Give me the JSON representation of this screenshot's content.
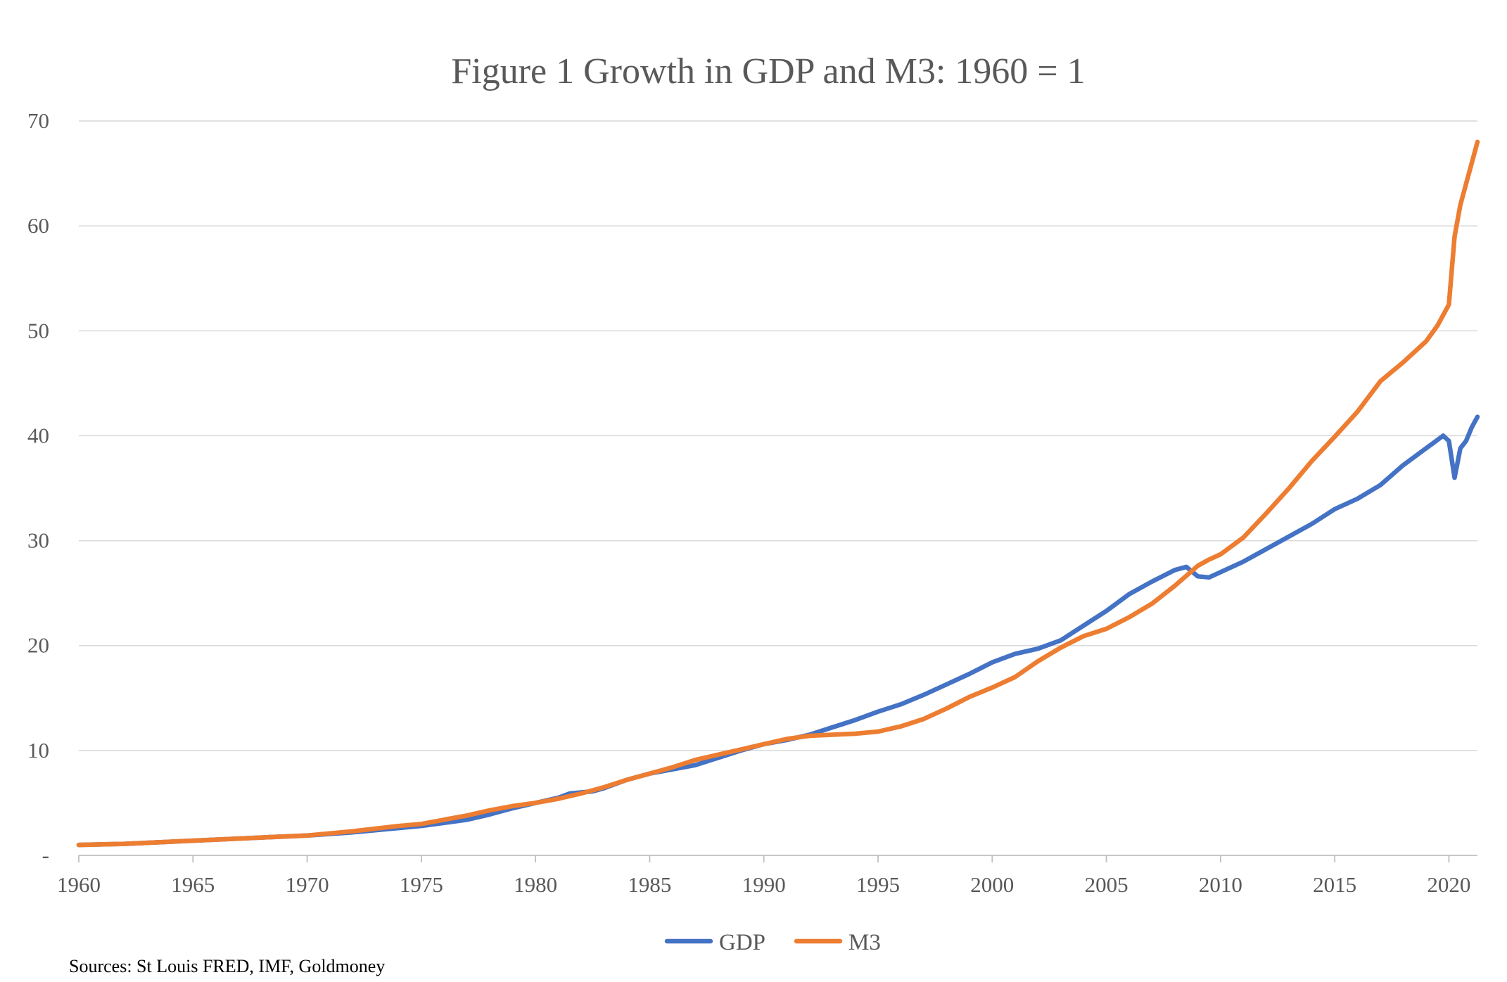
{
  "chart_data": {
    "type": "line",
    "title": "Figure 1 Growth in GDP and M3: 1960 = 1",
    "xlabel": "",
    "ylabel": "",
    "xlim": [
      1960,
      2021.25
    ],
    "ylim": [
      0,
      70
    ],
    "y_ticks": [
      "-",
      "10",
      "20",
      "30",
      "40",
      "50",
      "60",
      "70"
    ],
    "y_tick_values": [
      0,
      10,
      20,
      30,
      40,
      50,
      60,
      70
    ],
    "x_ticks": [
      "1960",
      "1965",
      "1970",
      "1975",
      "1980",
      "1985",
      "1990",
      "1995",
      "2000",
      "2005",
      "2010",
      "2015",
      "2020"
    ],
    "x_tick_values": [
      1960,
      1965,
      1970,
      1975,
      1980,
      1985,
      1990,
      1995,
      2000,
      2005,
      2010,
      2015,
      2020
    ],
    "grid": true,
    "legend_position": "bottom",
    "series": [
      {
        "name": "GDP",
        "color": "#4472c4",
        "points": [
          [
            1960,
            1.0
          ],
          [
            1962,
            1.1
          ],
          [
            1964,
            1.3
          ],
          [
            1966,
            1.5
          ],
          [
            1968,
            1.7
          ],
          [
            1970,
            1.9
          ],
          [
            1972,
            2.2
          ],
          [
            1974,
            2.6
          ],
          [
            1975,
            2.8
          ],
          [
            1976,
            3.1
          ],
          [
            1977,
            3.4
          ],
          [
            1978,
            3.9
          ],
          [
            1979,
            4.5
          ],
          [
            1980,
            5.0
          ],
          [
            1981,
            5.5
          ],
          [
            1981.5,
            5.9
          ],
          [
            1982,
            6.0
          ],
          [
            1982.5,
            6.1
          ],
          [
            1983,
            6.4
          ],
          [
            1984,
            7.2
          ],
          [
            1985,
            7.8
          ],
          [
            1986,
            8.2
          ],
          [
            1987,
            8.6
          ],
          [
            1988,
            9.3
          ],
          [
            1989,
            10.0
          ],
          [
            1990,
            10.6
          ],
          [
            1991,
            11.0
          ],
          [
            1992,
            11.5
          ],
          [
            1993,
            12.2
          ],
          [
            1994,
            12.9
          ],
          [
            1995,
            13.7
          ],
          [
            1996,
            14.4
          ],
          [
            1997,
            15.3
          ],
          [
            1998,
            16.3
          ],
          [
            1999,
            17.3
          ],
          [
            2000,
            18.4
          ],
          [
            2001,
            19.2
          ],
          [
            2002,
            19.7
          ],
          [
            2003,
            20.5
          ],
          [
            2004,
            21.9
          ],
          [
            2005,
            23.3
          ],
          [
            2006,
            24.9
          ],
          [
            2007,
            26.1
          ],
          [
            2008,
            27.2
          ],
          [
            2008.5,
            27.5
          ],
          [
            2009,
            26.6
          ],
          [
            2009.5,
            26.5
          ],
          [
            2010,
            27.0
          ],
          [
            2011,
            28.0
          ],
          [
            2012,
            29.2
          ],
          [
            2013,
            30.4
          ],
          [
            2014,
            31.6
          ],
          [
            2015,
            33.0
          ],
          [
            2016,
            34.0
          ],
          [
            2017,
            35.3
          ],
          [
            2018,
            37.2
          ],
          [
            2019,
            38.8
          ],
          [
            2019.75,
            40.0
          ],
          [
            2020,
            39.5
          ],
          [
            2020.25,
            36.0
          ],
          [
            2020.5,
            38.8
          ],
          [
            2020.75,
            39.5
          ],
          [
            2021,
            40.8
          ],
          [
            2021.25,
            41.8
          ]
        ]
      },
      {
        "name": "M3",
        "color": "#ed7d31",
        "points": [
          [
            1960,
            1.0
          ],
          [
            1962,
            1.1
          ],
          [
            1964,
            1.3
          ],
          [
            1966,
            1.5
          ],
          [
            1968,
            1.7
          ],
          [
            1970,
            1.9
          ],
          [
            1972,
            2.3
          ],
          [
            1974,
            2.8
          ],
          [
            1975,
            3.0
          ],
          [
            1976,
            3.4
          ],
          [
            1977,
            3.8
          ],
          [
            1978,
            4.3
          ],
          [
            1979,
            4.7
          ],
          [
            1980,
            5.0
          ],
          [
            1981,
            5.4
          ],
          [
            1982,
            5.9
          ],
          [
            1983,
            6.5
          ],
          [
            1984,
            7.2
          ],
          [
            1985,
            7.8
          ],
          [
            1986,
            8.4
          ],
          [
            1987,
            9.1
          ],
          [
            1988,
            9.6
          ],
          [
            1989,
            10.1
          ],
          [
            1990,
            10.6
          ],
          [
            1991,
            11.1
          ],
          [
            1992,
            11.4
          ],
          [
            1993,
            11.5
          ],
          [
            1994,
            11.6
          ],
          [
            1995,
            11.8
          ],
          [
            1996,
            12.3
          ],
          [
            1997,
            13.0
          ],
          [
            1998,
            14.0
          ],
          [
            1999,
            15.1
          ],
          [
            2000,
            16.0
          ],
          [
            2001,
            17.0
          ],
          [
            2002,
            18.5
          ],
          [
            2003,
            19.8
          ],
          [
            2004,
            20.9
          ],
          [
            2005,
            21.6
          ],
          [
            2006,
            22.7
          ],
          [
            2007,
            24.0
          ],
          [
            2008,
            25.7
          ],
          [
            2009,
            27.6
          ],
          [
            2009.5,
            28.2
          ],
          [
            2010,
            28.7
          ],
          [
            2011,
            30.3
          ],
          [
            2012,
            32.6
          ],
          [
            2013,
            35.0
          ],
          [
            2014,
            37.6
          ],
          [
            2015,
            39.9
          ],
          [
            2016,
            42.3
          ],
          [
            2017,
            45.2
          ],
          [
            2018,
            47.0
          ],
          [
            2019,
            49.0
          ],
          [
            2019.5,
            50.5
          ],
          [
            2020,
            52.5
          ],
          [
            2020.25,
            59.0
          ],
          [
            2020.5,
            62.0
          ],
          [
            2021,
            66.0
          ],
          [
            2021.25,
            68.0
          ]
        ]
      }
    ],
    "source": "Sources: St Louis FRED, IMF, Goldmoney"
  }
}
